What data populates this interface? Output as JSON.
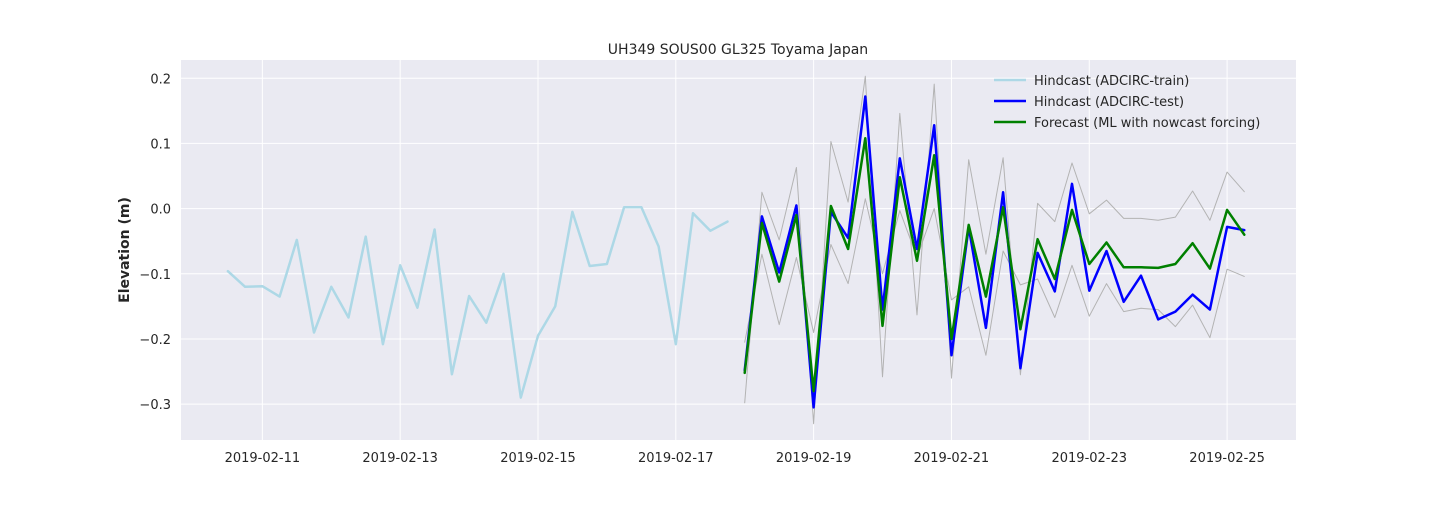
{
  "chart_data": {
    "type": "line",
    "title": "UH349 SOUS00 GL325 Toyama Japan",
    "xlabel": "",
    "ylabel": "Elevation (m)",
    "x_type": "time",
    "xlim": [
      "2019-02-09 19:40",
      "2019-02-26 00:00"
    ],
    "ylim": [
      -0.355,
      0.228
    ],
    "xticks": [
      "2019-02-11",
      "2019-02-13",
      "2019-02-15",
      "2019-02-17",
      "2019-02-19",
      "2019-02-21",
      "2019-02-23",
      "2019-02-25"
    ],
    "yticks": [
      -0.3,
      -0.2,
      -0.1,
      0.0,
      0.1,
      0.2
    ],
    "ytick_labels": [
      "−0.3",
      "−0.2",
      "−0.1",
      "0.0",
      "0.1",
      "0.2"
    ],
    "grid": true,
    "legend_position": "top-right",
    "legend": [
      "Hindcast (ADCIRC-train)",
      "Hindcast (ADCIRC-test)",
      "Forecast (ML with nowcast forcing)"
    ],
    "colors": {
      "background": "#eaeaf2",
      "grid": "#ffffff",
      "train": "#add8e6",
      "test": "#0000ff",
      "forecast": "#008000",
      "band": "#b3b3b3"
    },
    "series": [
      {
        "name": "Hindcast (ADCIRC-train)",
        "role": "train",
        "x": [
          "2019-02-10 12:00",
          "2019-02-10 18:00",
          "2019-02-11 00:00",
          "2019-02-11 06:00",
          "2019-02-11 12:00",
          "2019-02-11 18:00",
          "2019-02-12 00:00",
          "2019-02-12 06:00",
          "2019-02-12 12:00",
          "2019-02-12 18:00",
          "2019-02-13 00:00",
          "2019-02-13 06:00",
          "2019-02-13 12:00",
          "2019-02-13 18:00",
          "2019-02-14 00:00",
          "2019-02-14 06:00",
          "2019-02-14 12:00",
          "2019-02-14 18:00",
          "2019-02-15 00:00",
          "2019-02-15 06:00",
          "2019-02-15 12:00",
          "2019-02-15 18:00",
          "2019-02-16 00:00",
          "2019-02-16 06:00",
          "2019-02-16 12:00",
          "2019-02-16 18:00",
          "2019-02-17 00:00",
          "2019-02-17 06:00",
          "2019-02-17 12:00",
          "2019-02-17 18:00"
        ],
        "y": [
          -0.096,
          -0.12,
          -0.119,
          -0.135,
          -0.048,
          -0.19,
          -0.12,
          -0.167,
          -0.043,
          -0.208,
          -0.087,
          -0.152,
          -0.032,
          -0.254,
          -0.134,
          -0.175,
          -0.1,
          -0.29,
          -0.195,
          -0.15,
          -0.005,
          -0.088,
          -0.085,
          0.002,
          0.002,
          -0.058,
          -0.208,
          -0.007,
          -0.034,
          -0.02
        ]
      },
      {
        "name": "Hindcast (ADCIRC-test)",
        "role": "test",
        "x": [
          "2019-02-18 00:00",
          "2019-02-18 06:00",
          "2019-02-18 12:00",
          "2019-02-18 18:00",
          "2019-02-19 00:00",
          "2019-02-19 06:00",
          "2019-02-19 12:00",
          "2019-02-19 18:00",
          "2019-02-20 00:00",
          "2019-02-20 06:00",
          "2019-02-20 12:00",
          "2019-02-20 18:00",
          "2019-02-21 00:00",
          "2019-02-21 06:00",
          "2019-02-21 12:00",
          "2019-02-21 18:00",
          "2019-02-22 00:00",
          "2019-02-22 06:00",
          "2019-02-22 12:00",
          "2019-02-22 18:00",
          "2019-02-23 00:00",
          "2019-02-23 06:00",
          "2019-02-23 12:00",
          "2019-02-23 18:00",
          "2019-02-24 00:00",
          "2019-02-24 06:00",
          "2019-02-24 12:00",
          "2019-02-24 18:00",
          "2019-02-25 00:00",
          "2019-02-25 06:00"
        ],
        "y": [
          -0.248,
          -0.012,
          -0.098,
          0.005,
          -0.305,
          -0.005,
          -0.045,
          0.172,
          -0.155,
          0.077,
          -0.062,
          0.128,
          -0.225,
          -0.028,
          -0.183,
          0.025,
          -0.245,
          -0.068,
          -0.127,
          0.038,
          -0.126,
          -0.065,
          -0.143,
          -0.103,
          -0.17,
          -0.158,
          -0.132,
          -0.155,
          -0.028,
          -0.033
        ]
      },
      {
        "name": "Forecast (ML with nowcast forcing)",
        "role": "forecast",
        "x": [
          "2019-02-18 00:00",
          "2019-02-18 06:00",
          "2019-02-18 12:00",
          "2019-02-18 18:00",
          "2019-02-19 00:00",
          "2019-02-19 06:00",
          "2019-02-19 12:00",
          "2019-02-19 18:00",
          "2019-02-20 00:00",
          "2019-02-20 06:00",
          "2019-02-20 12:00",
          "2019-02-20 18:00",
          "2019-02-21 00:00",
          "2019-02-21 06:00",
          "2019-02-21 12:00",
          "2019-02-21 18:00",
          "2019-02-22 00:00",
          "2019-02-22 06:00",
          "2019-02-22 12:00",
          "2019-02-22 18:00",
          "2019-02-23 00:00",
          "2019-02-23 06:00",
          "2019-02-23 12:00",
          "2019-02-23 18:00",
          "2019-02-24 00:00",
          "2019-02-24 06:00",
          "2019-02-24 12:00",
          "2019-02-24 18:00",
          "2019-02-25 00:00",
          "2019-02-25 06:00"
        ],
        "y": [
          -0.252,
          -0.022,
          -0.112,
          -0.01,
          -0.28,
          0.004,
          -0.062,
          0.108,
          -0.18,
          0.048,
          -0.08,
          0.082,
          -0.2,
          -0.025,
          -0.135,
          0.002,
          -0.185,
          -0.047,
          -0.108,
          -0.002,
          -0.085,
          -0.052,
          -0.09,
          -0.09,
          -0.091,
          -0.085,
          -0.053,
          -0.092,
          -0.002,
          -0.04
        ]
      },
      {
        "name": "",
        "role": "band",
        "x": [
          "2019-02-18 00:00",
          "2019-02-18 06:00",
          "2019-02-18 12:00",
          "2019-02-18 18:00",
          "2019-02-19 00:00",
          "2019-02-19 06:00",
          "2019-02-19 12:00",
          "2019-02-19 18:00",
          "2019-02-20 00:00",
          "2019-02-20 06:00",
          "2019-02-20 12:00",
          "2019-02-20 18:00",
          "2019-02-21 00:00",
          "2019-02-21 06:00",
          "2019-02-21 12:00",
          "2019-02-21 18:00",
          "2019-02-22 00:00",
          "2019-02-22 06:00",
          "2019-02-22 12:00",
          "2019-02-22 18:00",
          "2019-02-23 00:00",
          "2019-02-23 06:00",
          "2019-02-23 12:00",
          "2019-02-23 18:00",
          "2019-02-24 00:00",
          "2019-02-24 06:00",
          "2019-02-24 12:00",
          "2019-02-24 18:00",
          "2019-02-25 00:00",
          "2019-02-25 06:00"
        ],
        "y": [
          -0.298,
          0.025,
          -0.048,
          0.063,
          -0.33,
          0.103,
          0.01,
          0.203,
          -0.258,
          0.146,
          -0.163,
          0.191,
          -0.26,
          0.075,
          -0.07,
          0.078,
          -0.255,
          0.008,
          -0.02,
          0.07,
          -0.008,
          0.013,
          -0.015,
          -0.015,
          -0.018,
          -0.013,
          0.027,
          -0.018,
          0.056,
          0.026
        ]
      },
      {
        "name": "",
        "role": "band",
        "x": [
          "2019-02-18 00:00",
          "2019-02-18 06:00",
          "2019-02-18 12:00",
          "2019-02-18 18:00",
          "2019-02-19 00:00",
          "2019-02-19 06:00",
          "2019-02-19 12:00",
          "2019-02-19 18:00",
          "2019-02-20 00:00",
          "2019-02-20 06:00",
          "2019-02-20 12:00",
          "2019-02-20 18:00",
          "2019-02-21 00:00",
          "2019-02-21 06:00",
          "2019-02-21 12:00",
          "2019-02-21 18:00",
          "2019-02-22 00:00",
          "2019-02-22 06:00",
          "2019-02-22 12:00",
          "2019-02-22 18:00",
          "2019-02-23 00:00",
          "2019-02-23 06:00",
          "2019-02-23 12:00",
          "2019-02-23 18:00",
          "2019-02-24 00:00",
          "2019-02-24 06:00",
          "2019-02-24 12:00",
          "2019-02-24 18:00",
          "2019-02-25 00:00",
          "2019-02-25 06:00"
        ],
        "y": [
          -0.205,
          -0.07,
          -0.178,
          -0.075,
          -0.19,
          -0.055,
          -0.115,
          0.015,
          -0.1,
          -0.003,
          -0.075,
          0.0,
          -0.14,
          -0.12,
          -0.225,
          -0.065,
          -0.117,
          -0.108,
          -0.167,
          -0.087,
          -0.165,
          -0.115,
          -0.158,
          -0.153,
          -0.155,
          -0.181,
          -0.148,
          -0.198,
          -0.093,
          -0.104
        ]
      }
    ]
  }
}
